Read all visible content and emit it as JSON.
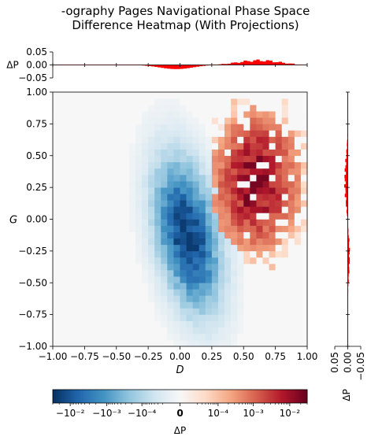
{
  "title_line1": "-ography Pages Navigational Phase Space",
  "title_line2": "Difference Heatmap (With Projections)",
  "chart_data": {
    "type": "heatmap",
    "xlabel": "D",
    "ylabel": "G",
    "xlim": [
      -1.0,
      1.0
    ],
    "ylim": [
      -1.0,
      1.0
    ],
    "x_ticks": [
      "−1.00",
      "−0.75",
      "−0.50",
      "−0.25",
      "0.00",
      "0.25",
      "0.50",
      "0.75",
      "1.00"
    ],
    "y_ticks": [
      "−1.00",
      "−0.75",
      "−0.50",
      "−0.25",
      "0.00",
      "0.25",
      "0.50",
      "0.75",
      "1.00"
    ],
    "top_marginal": {
      "ylabel": "ΔP",
      "ylim": [
        -0.05,
        0.05
      ],
      "ticks": [
        "0.05",
        "0.00",
        "−0.05"
      ],
      "color": "#ff0000"
    },
    "right_marginal": {
      "xlabel": "ΔP",
      "xlim": [
        0.05,
        -0.05
      ],
      "ticks": [
        "0.05",
        "0.00",
        "−0.05"
      ],
      "color": "#ff0000"
    },
    "colorbar": {
      "label": "ΔP",
      "scale": "symlog",
      "range": [
        -0.03,
        0.03
      ],
      "ticks": [
        "−10⁻²",
        "−10⁻³",
        "−10⁻⁴",
        "0",
        "10⁻⁴",
        "10⁻³",
        "10⁻²"
      ],
      "colormap": "RdBu_r"
    },
    "colors": {
      "negative_max": "#08306b",
      "neutral": "#f7f7f7",
      "positive_max": "#67001f",
      "marginal": "#ff0000"
    }
  }
}
